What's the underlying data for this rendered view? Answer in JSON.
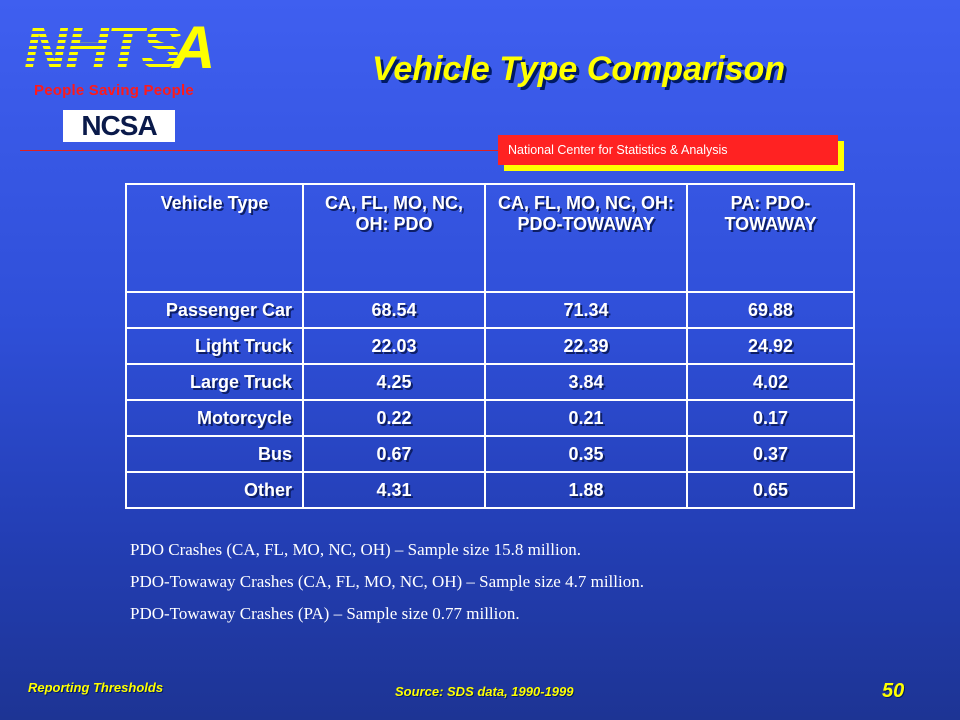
{
  "header": {
    "logo_text": "NHTSA",
    "tagline": "People Saving People",
    "ncsa_logo_text": "NCSA",
    "title": "Vehicle Type Comparison",
    "banner": "National Center for Statistics & Analysis"
  },
  "table": {
    "headers": [
      "Vehicle Type",
      "CA, FL, MO, NC, OH: PDO",
      "CA, FL, MO, NC, OH: PDO-TOWAWAY",
      "PA: PDO-TOWAWAY"
    ],
    "rows": [
      {
        "type": "Passenger Car",
        "values": [
          "68.54",
          "71.34",
          "69.88"
        ]
      },
      {
        "type": "Light Truck",
        "values": [
          "22.03",
          "22.39",
          "24.92"
        ]
      },
      {
        "type": "Large Truck",
        "values": [
          "4.25",
          "3.84",
          "4.02"
        ]
      },
      {
        "type": "Motorcycle",
        "values": [
          "0.22",
          "0.21",
          "0.17"
        ]
      },
      {
        "type": "Bus",
        "values": [
          "0.67",
          "0.35",
          "0.37"
        ]
      },
      {
        "type": "Other",
        "values": [
          "4.31",
          "1.88",
          "0.65"
        ]
      }
    ]
  },
  "notes": [
    "PDO Crashes (CA, FL, MO, NC, OH) – Sample size 15.8 million.",
    "PDO-Towaway Crashes (CA, FL, MO, NC, OH) – Sample size 4.7 million.",
    "PDO-Towaway Crashes (PA) – Sample size 0.77 million."
  ],
  "footer": {
    "left": "Reporting Thresholds",
    "source": "Source: SDS data, 1990-1999",
    "page": "50"
  },
  "colors": {
    "accent_yellow": "#ffff00",
    "accent_red": "#ff2222",
    "background_blue": "#2f4fd8"
  }
}
